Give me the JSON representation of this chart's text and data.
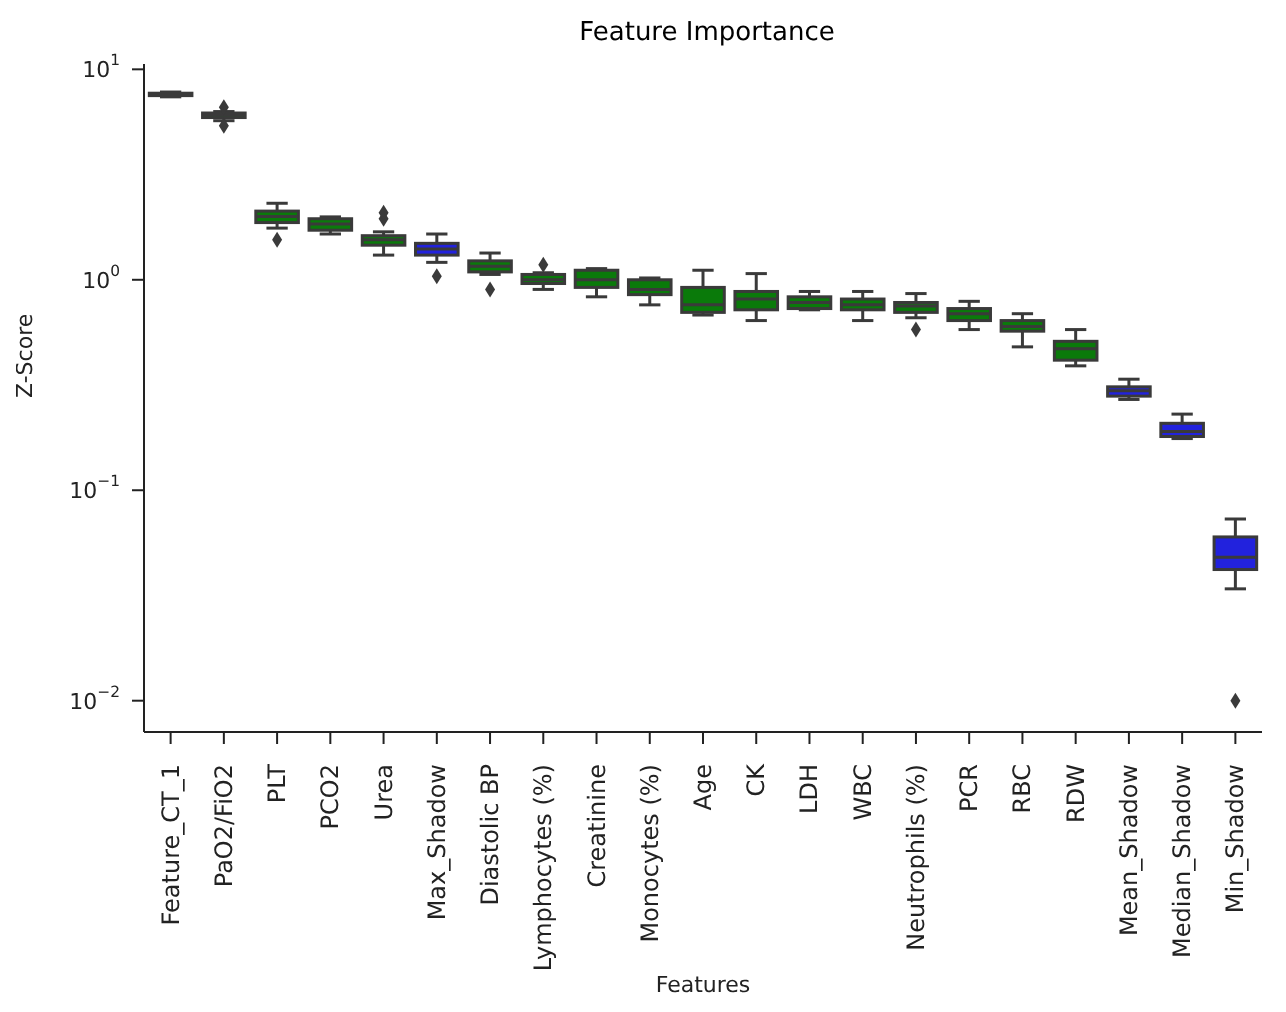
{
  "chart_data": {
    "type": "box",
    "title": "Feature Importance",
    "xlabel": "Features",
    "ylabel": "Z-Score",
    "log": true,
    "categories": [
      "Feature_CT_1",
      "PaO2/FiO2",
      "PLT",
      "PCO2",
      "Urea",
      "Max_Shadow",
      "Diastolic BP",
      "Lymphocytes (%)",
      "Creatinine",
      "Monocytes (%)",
      "Age",
      "CK",
      "LDH",
      "WBC",
      "Neutrophils (%)",
      "PCR",
      "RBC",
      "RDW",
      "Mean_Shadow",
      "Median_Shadow",
      "Min_Shadow"
    ],
    "colors": [
      "#0a7a0a",
      "#0a7a0a",
      "#0a7a0a",
      "#0a7a0a",
      "#0a7a0a",
      "#2222dd",
      "#0a7a0a",
      "#0a7a0a",
      "#0a7a0a",
      "#0a7a0a",
      "#0a7a0a",
      "#0a7a0a",
      "#0a7a0a",
      "#0a7a0a",
      "#0a7a0a",
      "#0a7a0a",
      "#0a7a0a",
      "#0a7a0a",
      "#2222dd",
      "#2222dd",
      "#2222dd"
    ],
    "boxes": [
      {
        "low": 7.4,
        "q1": 7.5,
        "median": 7.6,
        "q3": 7.7,
        "high": 7.8
      },
      {
        "low": 5.7,
        "q1": 5.9,
        "median": 6.1,
        "q3": 6.2,
        "high": 6.3,
        "outliers": [
          5.4,
          6.6
        ]
      },
      {
        "low": 1.76,
        "q1": 1.87,
        "median": 2.0,
        "q3": 2.12,
        "high": 2.31,
        "outliers": [
          1.55
        ]
      },
      {
        "low": 1.65,
        "q1": 1.72,
        "median": 1.84,
        "q3": 1.95,
        "high": 1.99
      },
      {
        "low": 1.31,
        "q1": 1.46,
        "median": 1.55,
        "q3": 1.62,
        "high": 1.69,
        "outliers": [
          1.95,
          2.08
        ]
      },
      {
        "low": 1.21,
        "q1": 1.31,
        "median": 1.4,
        "q3": 1.49,
        "high": 1.65,
        "outliers": [
          1.04
        ]
      },
      {
        "low": 1.06,
        "q1": 1.09,
        "median": 1.16,
        "q3": 1.23,
        "high": 1.34,
        "outliers": [
          0.9
        ]
      },
      {
        "low": 0.9,
        "q1": 0.96,
        "median": 1.0,
        "q3": 1.06,
        "high": 1.08,
        "outliers": [
          1.18
        ]
      },
      {
        "low": 0.83,
        "q1": 0.92,
        "median": 1.0,
        "q3": 1.11,
        "high": 1.13
      },
      {
        "low": 0.76,
        "q1": 0.85,
        "median": 0.9,
        "q3": 1.0,
        "high": 1.02
      },
      {
        "low": 0.68,
        "q1": 0.7,
        "median": 0.76,
        "q3": 0.92,
        "high": 1.11
      },
      {
        "low": 0.64,
        "q1": 0.72,
        "median": 0.81,
        "q3": 0.88,
        "high": 1.07
      },
      {
        "low": 0.72,
        "q1": 0.73,
        "median": 0.78,
        "q3": 0.83,
        "high": 0.88
      },
      {
        "low": 0.64,
        "q1": 0.72,
        "median": 0.76,
        "q3": 0.81,
        "high": 0.88
      },
      {
        "low": 0.66,
        "q1": 0.7,
        "median": 0.75,
        "q3": 0.78,
        "high": 0.86,
        "outliers": [
          0.58
        ]
      },
      {
        "low": 0.58,
        "q1": 0.64,
        "median": 0.69,
        "q3": 0.73,
        "high": 0.79
      },
      {
        "low": 0.48,
        "q1": 0.57,
        "median": 0.6,
        "q3": 0.64,
        "high": 0.69
      },
      {
        "low": 0.39,
        "q1": 0.415,
        "median": 0.47,
        "q3": 0.51,
        "high": 0.58
      },
      {
        "low": 0.27,
        "q1": 0.28,
        "median": 0.297,
        "q3": 0.31,
        "high": 0.337
      },
      {
        "low": 0.176,
        "q1": 0.18,
        "median": 0.19,
        "q3": 0.208,
        "high": 0.23
      },
      {
        "low": 0.034,
        "q1": 0.042,
        "median": 0.048,
        "q3": 0.06,
        "high": 0.073,
        "outliers": [
          0.01
        ]
      }
    ],
    "ylim": [
      0.0071,
      10.6
    ],
    "yticks": [
      {
        "value": 0.01,
        "label": "10$^{−2}$"
      },
      {
        "value": 0.1,
        "label": "10$^{−1}$"
      },
      {
        "value": 1,
        "label": "10$^{0}$"
      },
      {
        "value": 10,
        "label": "10$^{1}$"
      }
    ]
  }
}
